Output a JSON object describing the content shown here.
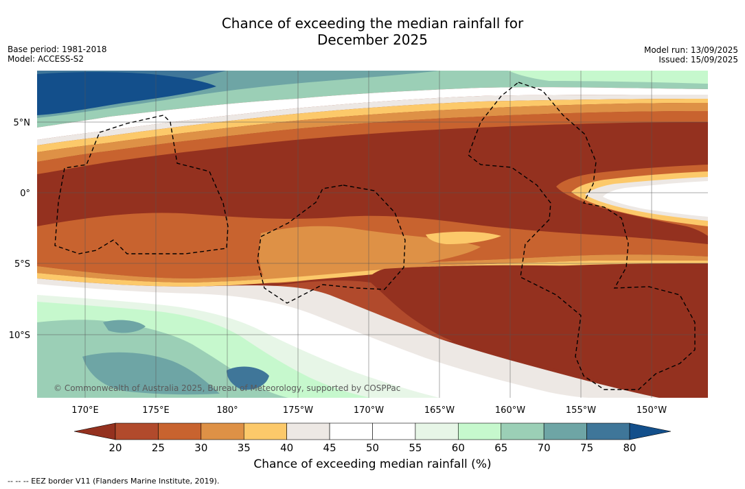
{
  "title_line1": "Chance of exceeding the median rainfall for",
  "title_line2": "December 2025",
  "base_period": "Base period: 1981-2018",
  "model": "Model: ACCESS-S2",
  "model_run": "Model run: 13/09/2025",
  "issued": "Issued: 15/09/2025",
  "copyright": "© Commonwealth of Australia 2025, Bureau of Meteorology, supported by COSPPac",
  "lat_labels": [
    "5°N",
    "0°",
    "5°S",
    "10°S"
  ],
  "lon_labels": [
    "170°E",
    "175°E",
    "180°",
    "175°W",
    "170°W",
    "165°W",
    "160°W",
    "155°W",
    "150°W"
  ],
  "colorbar": {
    "label": "Chance of exceeding median rainfall (%)",
    "ticks": [
      "20",
      "25",
      "30",
      "35",
      "40",
      "45",
      "50",
      "55",
      "60",
      "65",
      "70",
      "75",
      "80"
    ],
    "colors": [
      "#94311f",
      "#b14a2c",
      "#c8632f",
      "#de9146",
      "#fcc96a",
      "#ede8e4",
      "#ffffff",
      "#ffffff",
      "#e7f6e7",
      "#c6f8cd",
      "#9bcfb6",
      "#6ea5a5",
      "#3f7699",
      "#134f8b"
    ]
  },
  "legend_note": "--  --  -- EEZ border V11 (Flanders Marine Institute, 2019)."
}
